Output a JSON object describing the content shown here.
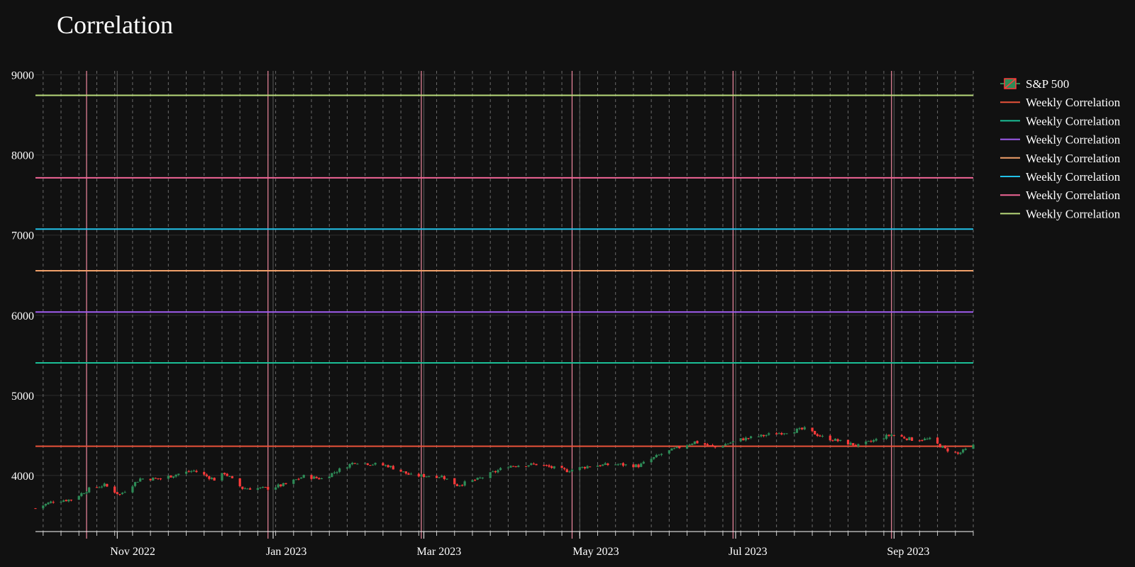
{
  "chart_data": {
    "type": "candlestick",
    "title": "Correlation",
    "xlabel": "",
    "ylabel": "",
    "x_range": [
      "2022-09-30",
      "2023-10-02"
    ],
    "ylim": [
      3300,
      9050
    ],
    "y_ticks": [
      4000,
      5000,
      6000,
      7000,
      8000,
      9000
    ],
    "x_ticks": [
      {
        "date": "2022-11-01",
        "label": "Nov 2022"
      },
      {
        "date": "2023-01-01",
        "label": "Jan 2023"
      },
      {
        "date": "2023-03-01",
        "label": "Mar 2023"
      },
      {
        "date": "2023-05-01",
        "label": "May 2023"
      },
      {
        "date": "2023-07-01",
        "label": "Jul 2023"
      },
      {
        "date": "2023-09-01",
        "label": "Sep 2023"
      }
    ],
    "grid": true,
    "weekly_gridlines": true,
    "vertical_markers": [
      "2022-10-20",
      "2022-12-30",
      "2023-02-28",
      "2023-04-28",
      "2023-06-30",
      "2023-08-31"
    ],
    "legend_position": "right",
    "candlestick_series": {
      "name": "S&P 500",
      "colors": {
        "up": "#2e8b57",
        "down": "#ff3b3b"
      },
      "anchors": [
        [
          "2022-09-30",
          3590
        ],
        [
          "2022-10-07",
          3680
        ],
        [
          "2022-10-14",
          3700
        ],
        [
          "2022-10-21",
          3830
        ],
        [
          "2022-10-27",
          3880
        ],
        [
          "2022-11-02",
          3760
        ],
        [
          "2022-11-10",
          3960
        ],
        [
          "2022-11-18",
          3960
        ],
        [
          "2022-11-25",
          4020
        ],
        [
          "2022-12-01",
          4060
        ],
        [
          "2022-12-09",
          3950
        ],
        [
          "2022-12-13",
          4030
        ],
        [
          "2022-12-20",
          3840
        ],
        [
          "2022-12-30",
          3840
        ],
        [
          "2023-01-06",
          3890
        ],
        [
          "2023-01-13",
          3990
        ],
        [
          "2023-01-20",
          3960
        ],
        [
          "2023-02-02",
          4170
        ],
        [
          "2023-02-15",
          4120
        ],
        [
          "2023-02-24",
          4000
        ],
        [
          "2023-03-08",
          3990
        ],
        [
          "2023-03-14",
          3880
        ],
        [
          "2023-03-22",
          3950
        ],
        [
          "2023-04-03",
          4120
        ],
        [
          "2023-04-14",
          4140
        ],
        [
          "2023-04-26",
          4060
        ],
        [
          "2023-05-05",
          4120
        ],
        [
          "2023-05-15",
          4140
        ],
        [
          "2023-05-24",
          4120
        ],
        [
          "2023-06-02",
          4270
        ],
        [
          "2023-06-15",
          4420
        ],
        [
          "2023-06-23",
          4350
        ],
        [
          "2023-07-03",
          4450
        ],
        [
          "2023-07-14",
          4510
        ],
        [
          "2023-07-28",
          4580
        ],
        [
          "2023-08-04",
          4480
        ],
        [
          "2023-08-18",
          4370
        ],
        [
          "2023-08-31",
          4510
        ],
        [
          "2023-09-08",
          4450
        ],
        [
          "2023-09-15",
          4450
        ],
        [
          "2023-09-21",
          4330
        ],
        [
          "2023-09-26",
          4270
        ],
        [
          "2023-10-02",
          4370
        ]
      ]
    },
    "series": [
      {
        "name": "Weekly Correlation",
        "value": 4365,
        "color": "#e8523a"
      },
      {
        "name": "Weekly Correlation",
        "value": 5405,
        "color": "#1bbf97"
      },
      {
        "name": "Weekly Correlation",
        "value": 6040,
        "color": "#a05cf0"
      },
      {
        "name": "Weekly Correlation",
        "value": 6555,
        "color": "#f0a06a"
      },
      {
        "name": "Weekly Correlation",
        "value": 7075,
        "color": "#22c1e8"
      },
      {
        "name": "Weekly Correlation",
        "value": 7715,
        "color": "#f06596"
      },
      {
        "name": "Weekly Correlation",
        "value": 8745,
        "color": "#b8d97a"
      }
    ]
  }
}
